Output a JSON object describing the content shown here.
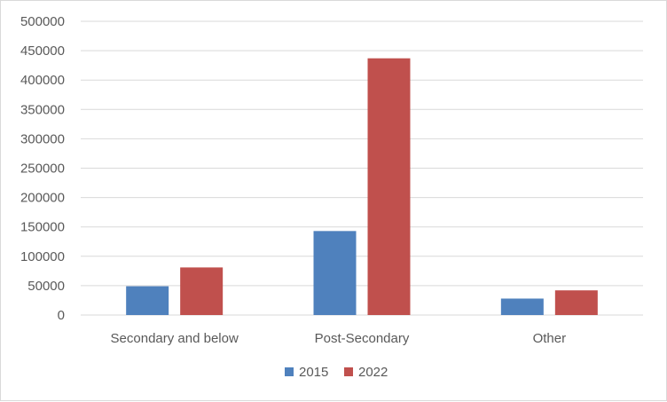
{
  "chart_data": {
    "type": "bar",
    "title": "",
    "xlabel": "",
    "ylabel": "",
    "categories": [
      "Secondary and below",
      "Post-Secondary",
      "Other"
    ],
    "series": [
      {
        "name": "2015",
        "color": "#4f81bd",
        "values": [
          49000,
          143000,
          28000
        ]
      },
      {
        "name": "2022",
        "color": "#c0504d",
        "values": [
          81000,
          437000,
          42000
        ]
      }
    ],
    "ylim": [
      0,
      500000
    ],
    "yticks": [
      0,
      50000,
      100000,
      150000,
      200000,
      250000,
      300000,
      350000,
      400000,
      450000,
      500000
    ],
    "grid": true,
    "legend_position": "bottom",
    "colors": {
      "gridline": "#d9d9d9",
      "axis_text": "#595959"
    }
  }
}
